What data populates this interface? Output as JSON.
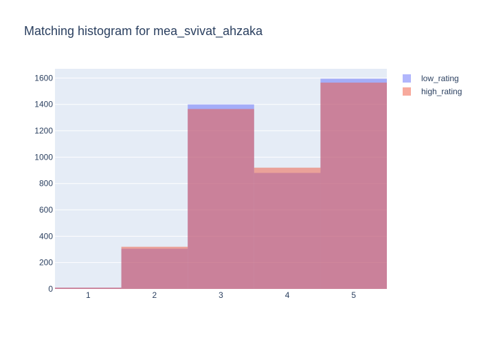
{
  "chart_data": {
    "type": "bar",
    "title": "Matching histogram for mea_svivat_ahzaka",
    "xlabel": "",
    "ylabel": "",
    "categories": [
      "1",
      "2",
      "3",
      "4",
      "5"
    ],
    "ylim": [
      0,
      1670
    ],
    "yticks": [
      0,
      200,
      400,
      600,
      800,
      1000,
      1200,
      1400,
      1600
    ],
    "grid": true,
    "barmode": "overlay",
    "legend_position": "top-right",
    "series": [
      {
        "name": "low_rating",
        "color": "#636efa",
        "opacity": 0.5,
        "values": [
          10,
          305,
          1400,
          880,
          1595
        ]
      },
      {
        "name": "high_rating",
        "color": "#ef553b",
        "opacity": 0.5,
        "values": [
          10,
          320,
          1365,
          920,
          1565
        ]
      }
    ],
    "plot_bg": "#e5ecf6"
  }
}
